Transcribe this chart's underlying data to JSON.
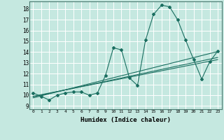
{
  "xlabel": "Humidex (Indice chaleur)",
  "ylabel": "",
  "xlim": [
    -0.5,
    23.5
  ],
  "ylim": [
    8.7,
    18.7
  ],
  "yticks": [
    9,
    10,
    11,
    12,
    13,
    14,
    15,
    16,
    17,
    18
  ],
  "xticks": [
    0,
    1,
    2,
    3,
    4,
    5,
    6,
    7,
    8,
    9,
    10,
    11,
    12,
    13,
    14,
    15,
    16,
    17,
    18,
    19,
    20,
    21,
    22,
    23
  ],
  "bg_color": "#c5e8e0",
  "line_color": "#1a6e60",
  "main_series_x": [
    0,
    1,
    2,
    3,
    4,
    5,
    6,
    7,
    8,
    9,
    10,
    11,
    12,
    13,
    14,
    15,
    16,
    17,
    18,
    19,
    20,
    21,
    22,
    23
  ],
  "main_series_y": [
    10.2,
    9.9,
    9.55,
    10.0,
    10.2,
    10.3,
    10.3,
    10.0,
    10.2,
    11.8,
    14.4,
    14.2,
    11.6,
    10.9,
    15.1,
    17.5,
    18.35,
    18.2,
    17.0,
    15.1,
    13.3,
    11.5,
    13.1,
    14.1
  ],
  "reg_line1_x": [
    0,
    23
  ],
  "reg_line1_y": [
    9.9,
    13.3
  ],
  "reg_line2_x": [
    0,
    23
  ],
  "reg_line2_y": [
    9.85,
    13.5
  ],
  "reg_line3_x": [
    0,
    23
  ],
  "reg_line3_y": [
    9.75,
    14.05
  ]
}
